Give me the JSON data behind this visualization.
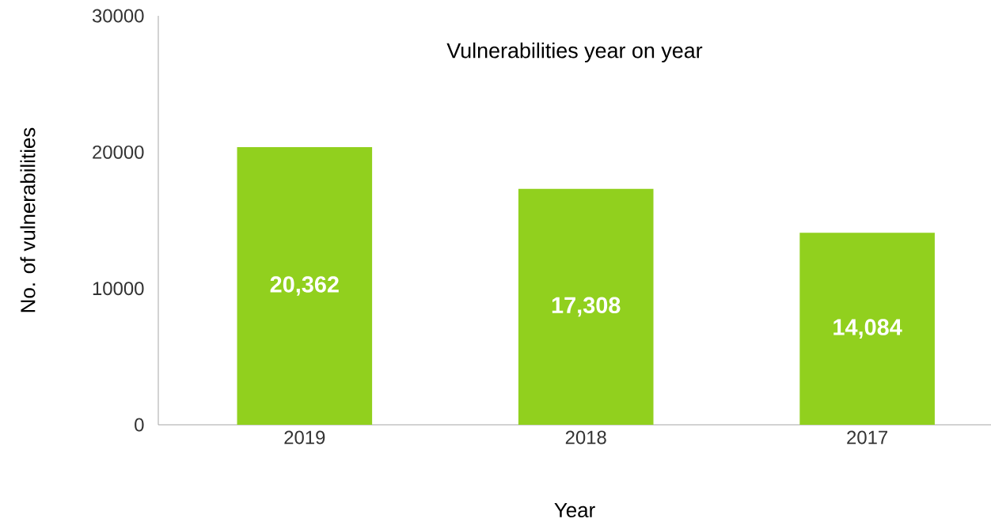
{
  "chart_data": {
    "type": "bar",
    "title": "Vulnerabilities year on year",
    "xlabel": "Year",
    "ylabel": "No. of vulnerabilities",
    "categories": [
      "2019",
      "2018",
      "2017"
    ],
    "values": [
      20362,
      17308,
      14084
    ],
    "value_labels": [
      "20,362",
      "17,308",
      "14,084"
    ],
    "color": "#91d01e",
    "ylim": [
      0,
      30000
    ],
    "yticks": [
      0,
      10000,
      20000,
      30000
    ],
    "grid": false
  }
}
